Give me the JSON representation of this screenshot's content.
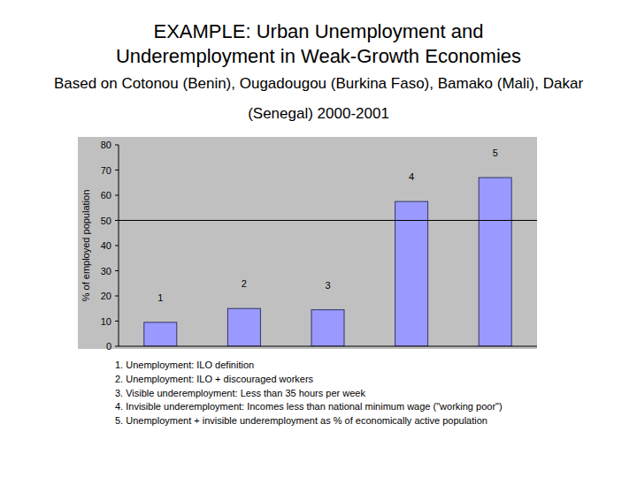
{
  "chart_data": {
    "type": "bar",
    "title": "EXAMPLE: Urban Unemployment and Underemployment in Weak-Growth Economies",
    "subtitle": "Based on Cotonou (Benin), Ougadougou (Burkina Faso), Bamako (Mali), Dakar (Senegal) 2000-2001",
    "y_label": "% of employed population",
    "categories": [
      "1",
      "2",
      "3",
      "4",
      "5"
    ],
    "values": [
      9.5,
      15,
      14.5,
      57.5,
      67
    ],
    "color": "#9999ff",
    "ylim": [
      0,
      80
    ],
    "yticks": [
      0,
      10,
      20,
      30,
      40,
      50,
      60,
      70,
      80
    ],
    "grid": false,
    "reference_line": 50,
    "notes": [
      "1. Unemployment: ILO definition",
      "2. Unemployment: ILO + discouraged workers",
      "3. Visible underemployment: Less than 35 hours per week",
      "4. Invisible underemployment: Incomes less than national minimum wage (\"working poor\")",
      "5. Unemployment + invisible underemployment as % of economically active population"
    ]
  }
}
